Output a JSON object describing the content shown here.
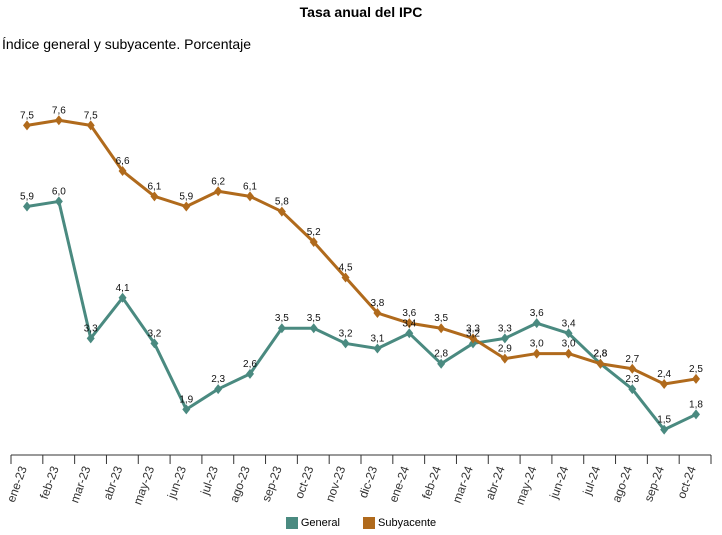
{
  "chart_data": {
    "type": "line",
    "title": "Tasa anual del IPC",
    "subtitle": "Índice general y subyacente. Porcentaje",
    "categories": [
      "ene-23",
      "feb-23",
      "mar-23",
      "abr-23",
      "may-23",
      "jun-23",
      "jul-23",
      "ago-23",
      "sep-23",
      "oct-23",
      "nov-23",
      "dic-23",
      "ene-24",
      "feb-24",
      "mar-24",
      "abr-24",
      "may-24",
      "jun-24",
      "jul-24",
      "ago-24",
      "sep-24",
      "oct-24"
    ],
    "series": [
      {
        "name": "General",
        "color": "#4a8a80",
        "values": [
          5.9,
          6.0,
          3.3,
          4.1,
          3.2,
          1.9,
          2.3,
          2.6,
          3.5,
          3.5,
          3.2,
          3.1,
          3.4,
          2.8,
          3.2,
          3.3,
          3.6,
          3.4,
          2.8,
          2.3,
          1.5,
          1.8
        ],
        "labels": [
          "5,9",
          "6,0",
          "3,3",
          "4,1",
          "3,2",
          "1,9",
          "2,3",
          "2,6",
          "3,5",
          "3,5",
          "3,2",
          "3,1",
          "3,4",
          "2,8",
          "3,2",
          "3,3",
          "3,6",
          "3,4",
          "2,8",
          "2,3",
          "1,5",
          "1,8"
        ]
      },
      {
        "name": "Subyacente",
        "color": "#b06a1c",
        "values": [
          7.5,
          7.6,
          7.5,
          6.6,
          6.1,
          5.9,
          6.2,
          6.1,
          5.8,
          5.2,
          4.5,
          3.8,
          3.6,
          3.5,
          3.3,
          2.9,
          3.0,
          3.0,
          2.8,
          2.7,
          2.4,
          2.5
        ],
        "labels": [
          "7,5",
          "7,6",
          "7,5",
          "6,6",
          "6,1",
          "5,9",
          "6,2",
          "6,1",
          "5,8",
          "5,2",
          "4,5",
          "3,8",
          "3,6",
          "3,5",
          "3,3",
          "2,9",
          "3,0",
          "3,0",
          "2,8",
          "2,7",
          "2,4",
          "2,5"
        ]
      }
    ],
    "ylim": [
      1.0,
      8.0
    ],
    "grid": false,
    "legend": "bottom"
  }
}
